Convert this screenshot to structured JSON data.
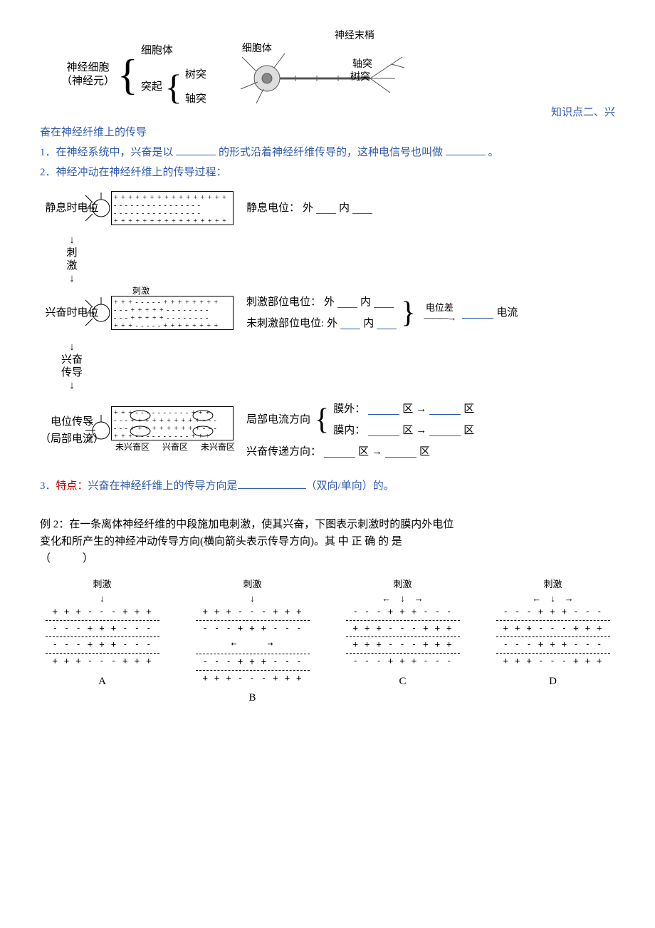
{
  "neuronTree": {
    "root_line1": "神经细胞",
    "root_line2": "（神经元）",
    "child1": "细胞体",
    "child2": "突起",
    "grandchild1": "树突",
    "grandchild2": "轴突"
  },
  "neuronFigure": {
    "label_terminal": "神经末梢",
    "label_body": "细胞体",
    "label_axon": "轴突",
    "label_dendrite": "树突"
  },
  "section2": {
    "heading_prefix": "知识点二、兴",
    "heading_cont": "奋在神经纤维上的传导",
    "p1_a": "1．在神经系统中，兴奋是以",
    "p1_b": "的形式沿着神经纤维传导的，这种电信号也叫做",
    "p1_c": "。",
    "p2": "2．神经冲动在神经纤维上的传导过程："
  },
  "conduction": {
    "stage1": "静息时电位",
    "arrow1": "刺\n激",
    "stage2": "兴奋时电位",
    "arrow2": "兴奋\n传导",
    "stage3": "电位传导\n（局部电流）",
    "bottom_labels": {
      "a": "未兴奋区",
      "b": "兴奋区",
      "c": "未兴奋区"
    },
    "stim_tag": "刺激",
    "r1": {
      "label": "静息电位：",
      "out": "外",
      "in": "内"
    },
    "r2a": {
      "label": "刺激部位电位：",
      "out": "外",
      "in": "内"
    },
    "r2b": {
      "label": "未刺激部位电位:",
      "out": "外",
      "in": "内"
    },
    "r2_diff": "电位差",
    "r2_current": "电流",
    "r3_label": "局部电流方向",
    "r3_out": "膜外：",
    "r3_in": "膜内：",
    "r3_zone": "区",
    "r3_arrow": "→",
    "r4_label": "兴奋传递方向：",
    "axon_patterns": {
      "rest_top": "+ + + + + + + + + + + + + + + +",
      "rest_mid": "- - - - - - - - - - - - - - - -",
      "stim_top": "+ + + - - - - - + + + + + + + +",
      "stim_mid": "- - - + + + + + - - - - - - - -",
      "prop_top": "+ + + - - - - - - - - - - + + +",
      "prop_mid": "- - - + + + + + + + + + + - - -"
    }
  },
  "point3": {
    "prefix": "3．",
    "keyword": "特点：",
    "text_a": "兴奋在神经纤维上的传导方向是",
    "text_b": "（双向/单向）的。",
    "blank_width": 96
  },
  "example2": {
    "line1": "例 2：在一条离体神经纤维的中段施加电刺激，使其兴奋，下图表示刺激时的膜内外电位",
    "line2": "变化和所产生的神经冲动传导方向(横向箭头表示传导方向)。其 中 正 确 的 是",
    "line3": "（　　　）",
    "options": [
      {
        "caption": "A",
        "stim": "刺激",
        "top_arrows": "↓",
        "rows": [
          "+ + + - - - + + +",
          "- - - + + + - - -",
          "- - - + + + - - -",
          "+ + + - - - + + +"
        ],
        "arrow_row": ""
      },
      {
        "caption": "B",
        "stim": "刺激",
        "top_arrows": "↓",
        "rows": [
          "+ + + - - - + + +",
          "- - - + + + - - -",
          "- - - + + + - - -",
          "+ + + - - - + + +"
        ],
        "arrow_row": "←　　　→"
      },
      {
        "caption": "C",
        "stim": "刺激",
        "top_arrows": "←　↓　→",
        "rows": [
          "- - - + + + - - -",
          "+ + + - - - + + +",
          "+ + + - - - + + +",
          "- - - + + + - - -"
        ],
        "arrow_row": ""
      },
      {
        "caption": "D",
        "stim": "刺激",
        "top_arrows": "←　↓　→",
        "rows": [
          "- - - + + + - - -",
          "+ + + - - - + + +",
          "- - - + + + - - -",
          "+ + + - - - + + +"
        ],
        "arrow_row": ""
      }
    ]
  },
  "colors": {
    "blue": "#2e5aac",
    "red": "#c00000",
    "text": "#000000"
  }
}
